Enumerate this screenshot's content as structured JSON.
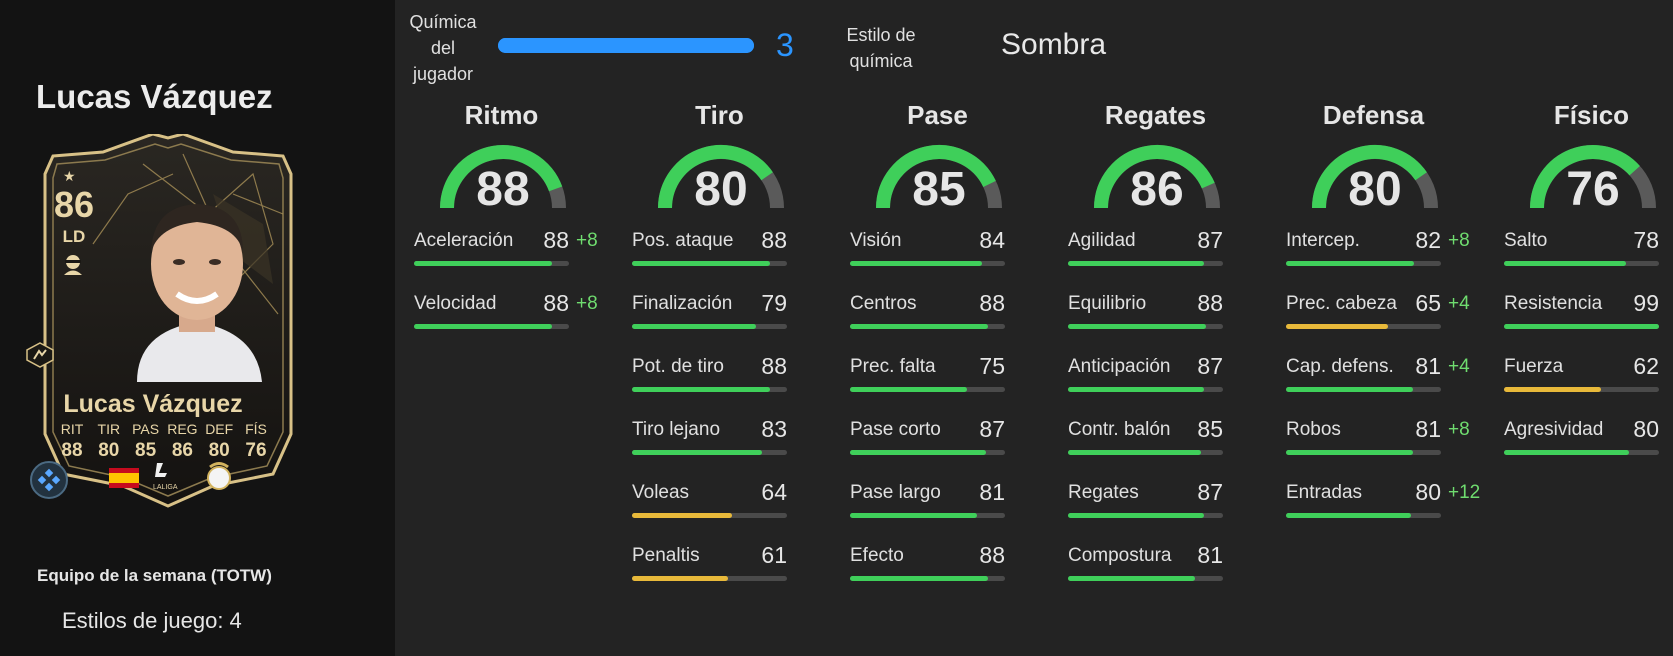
{
  "player": {
    "name": "Lucas Vázquez",
    "card_name": "Lucas Vázquez",
    "rating": "86",
    "position": "LD",
    "card_stats": [
      {
        "label": "RIT",
        "value": "88"
      },
      {
        "label": "TIR",
        "value": "80"
      },
      {
        "label": "PAS",
        "value": "85"
      },
      {
        "label": "REG",
        "value": "86"
      },
      {
        "label": "DEF",
        "value": "80"
      },
      {
        "label": "FÍS",
        "value": "76"
      }
    ],
    "card_logo_text": "LALIGA",
    "card_type": "Equipo de la semana (TOTW)",
    "playstyles": "Estilos de juego: 4"
  },
  "header": {
    "chemistry_label_lines": [
      "Química",
      "del",
      "jugador"
    ],
    "chemistry_value": "3",
    "chemistry_fill": 1.0,
    "chem_style_label_lines": [
      "Estilo de",
      "química"
    ],
    "chem_style_value": "Sombra"
  },
  "colors": {
    "green": "#3fcf5a",
    "yellow": "#e8b93a",
    "blue": "#2b95ff",
    "track": "#4a4a4a",
    "gold": "#e8d6a8"
  },
  "columns": [
    {
      "title": "Ritmo",
      "value": "88",
      "stats": [
        {
          "name": "Aceleración",
          "value": "88",
          "boost": "+8"
        },
        {
          "name": "Velocidad",
          "value": "88",
          "boost": "+8"
        }
      ]
    },
    {
      "title": "Tiro",
      "value": "80",
      "stats": [
        {
          "name": "Pos. ataque",
          "value": "88",
          "boost": ""
        },
        {
          "name": "Finalización",
          "value": "79",
          "boost": ""
        },
        {
          "name": "Pot. de tiro",
          "value": "88",
          "boost": ""
        },
        {
          "name": "Tiro lejano",
          "value": "83",
          "boost": ""
        },
        {
          "name": "Voleas",
          "value": "64",
          "boost": ""
        },
        {
          "name": "Penaltis",
          "value": "61",
          "boost": ""
        }
      ]
    },
    {
      "title": "Pase",
      "value": "85",
      "stats": [
        {
          "name": "Visión",
          "value": "84",
          "boost": ""
        },
        {
          "name": "Centros",
          "value": "88",
          "boost": ""
        },
        {
          "name": "Prec. falta",
          "value": "75",
          "boost": ""
        },
        {
          "name": "Pase corto",
          "value": "87",
          "boost": ""
        },
        {
          "name": "Pase largo",
          "value": "81",
          "boost": ""
        },
        {
          "name": "Efecto",
          "value": "88",
          "boost": ""
        }
      ]
    },
    {
      "title": "Regates",
      "value": "86",
      "stats": [
        {
          "name": "Agilidad",
          "value": "87",
          "boost": ""
        },
        {
          "name": "Equilibrio",
          "value": "88",
          "boost": ""
        },
        {
          "name": "Anticipación",
          "value": "87",
          "boost": ""
        },
        {
          "name": "Contr. balón",
          "value": "85",
          "boost": ""
        },
        {
          "name": "Regates",
          "value": "87",
          "boost": ""
        },
        {
          "name": "Compostura",
          "value": "81",
          "boost": ""
        }
      ]
    },
    {
      "title": "Defensa",
      "value": "80",
      "stats": [
        {
          "name": "Intercep.",
          "value": "82",
          "boost": "+8"
        },
        {
          "name": "Prec. cabeza",
          "value": "65",
          "boost": "+4"
        },
        {
          "name": "Cap. defens.",
          "value": "81",
          "boost": "+4"
        },
        {
          "name": "Robos",
          "value": "81",
          "boost": "+8"
        },
        {
          "name": "Entradas",
          "value": "80",
          "boost": "+12"
        }
      ]
    },
    {
      "title": "Físico",
      "value": "76",
      "stats": [
        {
          "name": "Salto",
          "value": "78",
          "boost": ""
        },
        {
          "name": "Resistencia",
          "value": "99",
          "boost": ""
        },
        {
          "name": "Fuerza",
          "value": "62",
          "boost": ""
        },
        {
          "name": "Agresividad",
          "value": "80",
          "boost": ""
        }
      ]
    }
  ]
}
